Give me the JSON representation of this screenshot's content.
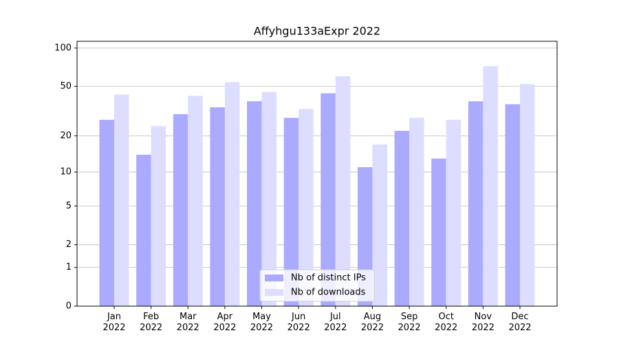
{
  "chart_data": {
    "type": "bar",
    "title": "Affyhgu133aExpr 2022",
    "categories": [
      "Jan 2022",
      "Feb 2022",
      "Mar 2022",
      "Apr 2022",
      "May 2022",
      "Jun 2022",
      "Jul 2022",
      "Aug 2022",
      "Sep 2022",
      "Oct 2022",
      "Nov 2022",
      "Dec 2022"
    ],
    "series": [
      {
        "name": "Nb of distinct IPs",
        "color": "#aaaaff",
        "values": [
          27,
          14,
          30,
          34,
          38,
          28,
          44,
          11,
          22,
          13,
          38,
          36
        ]
      },
      {
        "name": "Nb of downloads",
        "color": "#ddddff",
        "values": [
          43,
          24,
          42,
          54,
          45,
          33,
          60,
          17,
          28,
          27,
          72,
          52
        ]
      }
    ],
    "yscale": "log1p",
    "ylim": [
      0,
      113
    ],
    "yticks": [
      0,
      1,
      2,
      5,
      10,
      20,
      50,
      100
    ],
    "grid": true,
    "legend": "lower center"
  }
}
